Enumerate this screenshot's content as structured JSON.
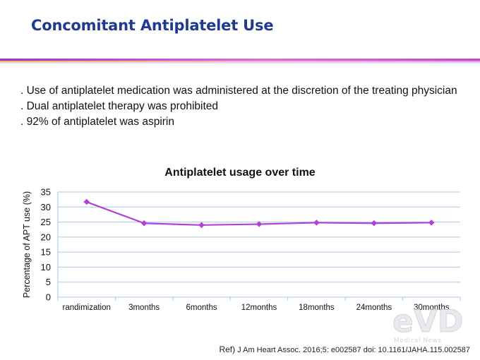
{
  "slide": {
    "title": "Concomitant Antiplatelet Use",
    "bullets": [
      ". Use of antiplatelet medication was administered at the discretion of the treating physician",
      ". Dual antiplatelet therapy was prohibited",
      ". 92% of antiplatelet was aspirin"
    ],
    "ref_lead": "Ref)",
    "ref_text": "J Am Heart Assoc. 2016;5: e002587 doi: 10.1161/JAHA.115.002587",
    "watermark_text": "Medical News",
    "colors": {
      "title": "#1f3a8f",
      "series": "#b23fd6",
      "grid": "#a8c8e8"
    }
  },
  "chart_data": {
    "type": "line",
    "title": "Antiplatelet usage over time",
    "xlabel": "",
    "ylabel": "Percentage of APT use (%)",
    "categories": [
      "randimization",
      "3months",
      "6months",
      "12months",
      "18months",
      "24months",
      "30months"
    ],
    "series": [
      {
        "values": [
          31.7,
          24.6,
          24.0,
          24.3,
          24.8,
          24.6,
          24.8
        ]
      }
    ],
    "ylim": [
      0,
      35
    ],
    "yticks": [
      0,
      5,
      10,
      15,
      20,
      25,
      30,
      35
    ],
    "grid": true,
    "legend": "none"
  }
}
